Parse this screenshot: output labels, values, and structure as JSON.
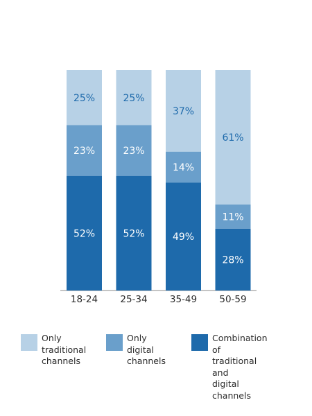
{
  "chart_data": {
    "type": "bar",
    "stacked": true,
    "categories": [
      "18-24",
      "25-34",
      "35-49",
      "50-59"
    ],
    "series": [
      {
        "name": "Combination\nof traditional and\ndigital channels",
        "values": [
          52,
          52,
          49,
          28
        ],
        "color": "#1e6aab"
      },
      {
        "name": "Only digital\nchannels",
        "values": [
          23,
          23,
          14,
          11
        ],
        "color": "#6a9fcb"
      },
      {
        "name": "Only\ntraditional\nchannels",
        "values": [
          25,
          25,
          37,
          61
        ],
        "color": "#b7d1e6"
      }
    ],
    "value_suffix": "%",
    "label_colors": {
      "dark_background": "#ffffff",
      "light_background": "#1e6aab"
    },
    "axis_color": "#8a8a8a",
    "ylim": [
      0,
      100
    ],
    "grid": false,
    "legend_position": "bottom"
  }
}
